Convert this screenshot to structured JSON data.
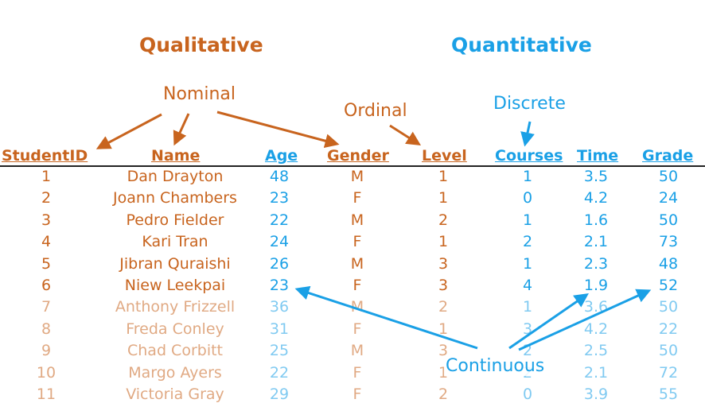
{
  "titles": {
    "qualitative": "Qualitative",
    "quantitative": "Quantitative"
  },
  "labels": {
    "nominal": "Nominal",
    "ordinal": "Ordinal",
    "discrete": "Discrete",
    "continuous": "Continuous"
  },
  "headers": {
    "student_id": "StudentID",
    "name": "Name",
    "age": "Age",
    "gender": "Gender",
    "level": "Level",
    "courses": "Courses",
    "time": "Time",
    "grade": "Grade"
  },
  "rows": [
    {
      "id": "1",
      "name": "Dan Drayton",
      "age": "48",
      "gender": "M",
      "level": "1",
      "courses": "1",
      "time": "3.5",
      "grade": "50"
    },
    {
      "id": "2",
      "name": "Joann Chambers",
      "age": "23",
      "gender": "F",
      "level": "1",
      "courses": "0",
      "time": "4.2",
      "grade": "24"
    },
    {
      "id": "3",
      "name": "Pedro Fielder",
      "age": "22",
      "gender": "M",
      "level": "2",
      "courses": "1",
      "time": "1.6",
      "grade": "50"
    },
    {
      "id": "4",
      "name": "Kari Tran",
      "age": "24",
      "gender": "F",
      "level": "1",
      "courses": "2",
      "time": "2.1",
      "grade": "73"
    },
    {
      "id": "5",
      "name": "Jibran Quraishi",
      "age": "26",
      "gender": "M",
      "level": "3",
      "courses": "1",
      "time": "2.3",
      "grade": "48"
    },
    {
      "id": "6",
      "name": "Niew Leekpai",
      "age": "23",
      "gender": "F",
      "level": "3",
      "courses": "4",
      "time": "1.9",
      "grade": "52"
    },
    {
      "id": "7",
      "name": "Anthony Frizzell",
      "age": "36",
      "gender": "M",
      "level": "2",
      "courses": "1",
      "time": "3.6",
      "grade": "50"
    },
    {
      "id": "8",
      "name": "Freda Conley",
      "age": "31",
      "gender": "F",
      "level": "1",
      "courses": "3",
      "time": "4.2",
      "grade": "22"
    },
    {
      "id": "9",
      "name": "Chad Corbitt",
      "age": "25",
      "gender": "M",
      "level": "3",
      "courses": "2",
      "time": "2.5",
      "grade": "50"
    },
    {
      "id": "10",
      "name": "Margo Ayers",
      "age": "22",
      "gender": "F",
      "level": "1",
      "courses": "2",
      "time": "2.1",
      "grade": "72"
    },
    {
      "id": "11",
      "name": "Victoria Gray",
      "age": "29",
      "gender": "F",
      "level": "2",
      "courses": "0",
      "time": "3.9",
      "grade": "55"
    }
  ],
  "colors": {
    "qualitative": "#c8641e",
    "quantitative": "#1aa0e6"
  }
}
